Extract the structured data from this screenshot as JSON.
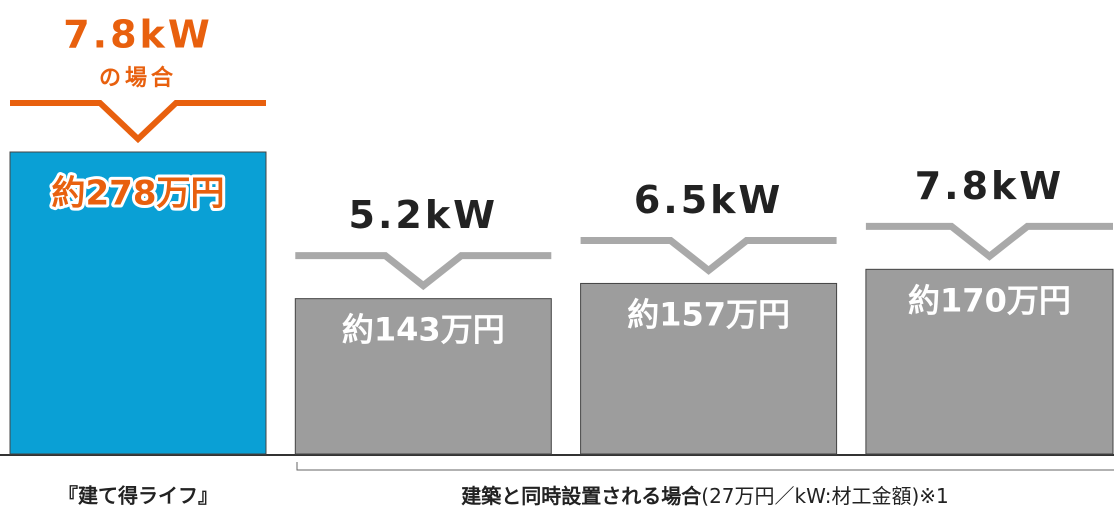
{
  "chart_data": {
    "type": "bar",
    "categories": [
      "7.8kW",
      "5.2kW",
      "6.5kW",
      "7.8kW"
    ],
    "category_notes": [
      "の場合",
      null,
      null,
      null
    ],
    "values": [
      278,
      143,
      157,
      170
    ],
    "value_labels": [
      "約278万円",
      "約143万円",
      "約157万円",
      "約170万円"
    ],
    "colors": [
      "#0aa0d5",
      "#9d9d9d",
      "#9d9d9d",
      "#9d9d9d"
    ],
    "header_colors": [
      "#e8600e",
      "#a9a9a9",
      "#a9a9a9",
      "#a9a9a9"
    ],
    "groups": [
      {
        "title": "『建て得ライフ』"
      },
      {
        "title": "建築と同時設置される場合",
        "note": "(27万円／kW:材工金額)※1"
      }
    ]
  }
}
